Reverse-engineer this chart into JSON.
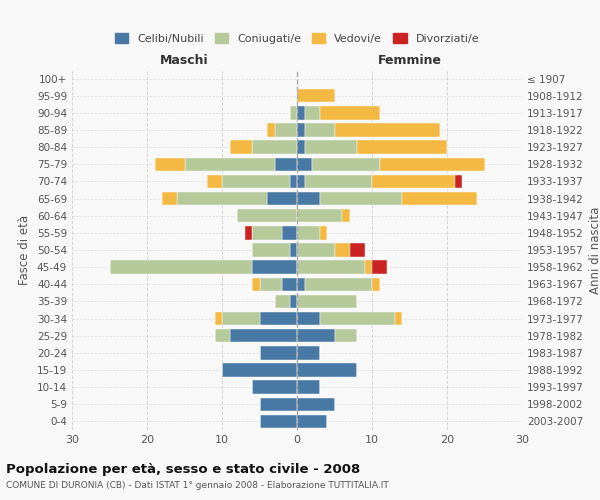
{
  "age_groups": [
    "0-4",
    "5-9",
    "10-14",
    "15-19",
    "20-24",
    "25-29",
    "30-34",
    "35-39",
    "40-44",
    "45-49",
    "50-54",
    "55-59",
    "60-64",
    "65-69",
    "70-74",
    "75-79",
    "80-84",
    "85-89",
    "90-94",
    "95-99",
    "100+"
  ],
  "birth_years": [
    "2003-2007",
    "1998-2002",
    "1993-1997",
    "1988-1992",
    "1983-1987",
    "1978-1982",
    "1973-1977",
    "1968-1972",
    "1963-1967",
    "1958-1962",
    "1953-1957",
    "1948-1952",
    "1943-1947",
    "1938-1942",
    "1933-1937",
    "1928-1932",
    "1923-1927",
    "1918-1922",
    "1913-1917",
    "1908-1912",
    "≤ 1907"
  ],
  "male": {
    "celibi": [
      5,
      5,
      6,
      10,
      5,
      9,
      5,
      1,
      2,
      6,
      1,
      2,
      0,
      4,
      1,
      3,
      0,
      0,
      0,
      0,
      0
    ],
    "coniugati": [
      0,
      0,
      0,
      0,
      0,
      2,
      5,
      2,
      3,
      19,
      5,
      4,
      8,
      12,
      9,
      12,
      6,
      3,
      1,
      0,
      0
    ],
    "vedovi": [
      0,
      0,
      0,
      0,
      0,
      0,
      1,
      0,
      1,
      0,
      0,
      0,
      0,
      2,
      2,
      4,
      3,
      1,
      0,
      0,
      0
    ],
    "divorziati": [
      0,
      0,
      0,
      0,
      0,
      0,
      0,
      0,
      0,
      0,
      0,
      1,
      0,
      0,
      0,
      0,
      0,
      0,
      0,
      0,
      0
    ]
  },
  "female": {
    "nubili": [
      4,
      5,
      3,
      8,
      3,
      5,
      3,
      0,
      1,
      0,
      0,
      0,
      0,
      3,
      1,
      2,
      1,
      1,
      1,
      0,
      0
    ],
    "coniugate": [
      0,
      0,
      0,
      0,
      0,
      3,
      10,
      8,
      9,
      9,
      5,
      3,
      6,
      11,
      9,
      9,
      7,
      4,
      2,
      0,
      0
    ],
    "vedove": [
      0,
      0,
      0,
      0,
      0,
      0,
      1,
      0,
      1,
      1,
      2,
      1,
      1,
      10,
      11,
      14,
      12,
      14,
      8,
      5,
      0
    ],
    "divorziate": [
      0,
      0,
      0,
      0,
      0,
      0,
      0,
      0,
      0,
      2,
      2,
      0,
      0,
      0,
      1,
      0,
      0,
      0,
      0,
      0,
      0
    ]
  },
  "colors": {
    "celibi_nubili": "#4878a4",
    "coniugati": "#b5c99a",
    "vedovi": "#f4b942",
    "divorziati": "#cc2222"
  },
  "xlim": 30,
  "title": "Popolazione per età, sesso e stato civile - 2008",
  "subtitle": "COMUNE DI DURONIA (CB) - Dati ISTAT 1° gennaio 2008 - Elaborazione TUTTITALIA.IT",
  "xlabel_left": "Maschi",
  "xlabel_right": "Femmine",
  "ylabel_left": "Fasce di età",
  "ylabel_right": "Anni di nascita",
  "legend_labels": [
    "Celibi/Nubili",
    "Coniugati/e",
    "Vedovi/e",
    "Divorziati/e"
  ],
  "background_color": "#f8f8f8",
  "grid_color": "#cccccc"
}
